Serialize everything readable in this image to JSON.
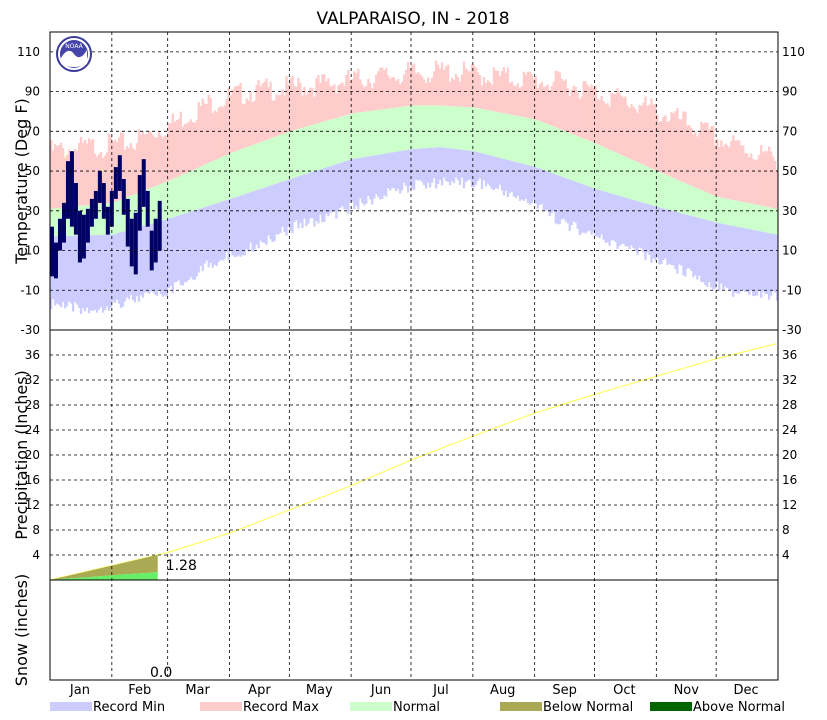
{
  "chart_data": {
    "type": "area",
    "title": "VALPARAISO, IN - 2018",
    "months": [
      "Jan",
      "Feb",
      "Mar",
      "Apr",
      "May",
      "Jun",
      "Jul",
      "Aug",
      "Sep",
      "Oct",
      "Nov",
      "Dec"
    ],
    "colors": {
      "record_min": "#ccccff",
      "record_max": "#ffcccc",
      "normal": "#ccffcc",
      "observed_temp": "#000066",
      "precip_normal_line": "#ffff66",
      "below_normal": "#aaaa55",
      "above_normal": "#006600",
      "observed_precip": "#66ee66",
      "grid": "#000000"
    },
    "panels": [
      {
        "name": "temperature",
        "ylabel": "Temperature (Deg F)",
        "ylim": [
          -30,
          120
        ],
        "yticks": [
          -30,
          -10,
          10,
          30,
          50,
          70,
          90,
          110
        ],
        "normal_high": {
          "x_day": [
            1,
            32,
            60,
            91,
            121,
            152,
            182,
            196,
            213,
            244,
            274,
            305,
            335,
            365
          ],
          "y": [
            31,
            34,
            45,
            59,
            70,
            79,
            83,
            83,
            82,
            76,
            64,
            50,
            37,
            31
          ]
        },
        "normal_low": {
          "x_day": [
            1,
            32,
            60,
            91,
            121,
            152,
            182,
            196,
            213,
            244,
            274,
            305,
            335,
            365
          ],
          "y": [
            17,
            18,
            26,
            36,
            46,
            56,
            61,
            62,
            60,
            52,
            41,
            32,
            24,
            18
          ]
        },
        "record_high": {
          "x_day": [
            1,
            20,
            40,
            60,
            80,
            100,
            120,
            140,
            160,
            180,
            200,
            220,
            240,
            260,
            280,
            300,
            320,
            340,
            365
          ],
          "y": [
            60,
            62,
            64,
            73,
            84,
            90,
            92,
            94,
            97,
            99,
            100,
            98,
            96,
            94,
            88,
            82,
            74,
            64,
            56
          ]
        },
        "record_low": {
          "x_day": [
            1,
            20,
            40,
            60,
            80,
            100,
            120,
            140,
            160,
            180,
            200,
            220,
            240,
            260,
            280,
            300,
            320,
            340,
            365
          ],
          "y": [
            -14,
            -17,
            -12,
            -8,
            6,
            14,
            24,
            30,
            38,
            45,
            48,
            46,
            38,
            26,
            18,
            10,
            2,
            -8,
            -10
          ]
        },
        "observed": {
          "x_day": [
            1,
            3,
            5,
            7,
            9,
            11,
            13,
            15,
            17,
            19,
            21,
            23,
            25,
            27,
            29,
            31,
            33,
            35,
            37,
            39,
            41,
            43,
            45,
            47,
            49,
            51,
            53,
            55
          ],
          "high": [
            22,
            14,
            26,
            34,
            55,
            60,
            44,
            30,
            28,
            31,
            36,
            40,
            50,
            44,
            32,
            40,
            52,
            58,
            46,
            36,
            26,
            29,
            48,
            56,
            40,
            20,
            26,
            35
          ],
          "low": [
            -3,
            -4,
            10,
            14,
            26,
            22,
            18,
            4,
            6,
            14,
            22,
            26,
            34,
            26,
            18,
            22,
            36,
            40,
            28,
            12,
            2,
            -2,
            20,
            32,
            22,
            0,
            4,
            10
          ]
        }
      },
      {
        "name": "precipitation",
        "ylabel": "Precipitation (Inches)",
        "ylim": [
          0,
          40
        ],
        "yticks": [
          4,
          8,
          12,
          16,
          20,
          24,
          28,
          32,
          36
        ],
        "normal_cumulative": {
          "x_day": [
            1,
            32,
            60,
            91,
            121,
            152,
            182,
            213,
            244,
            274,
            305,
            335,
            365
          ],
          "y": [
            0,
            2.3,
            4.4,
            7.5,
            11.2,
            15.1,
            19.2,
            23.0,
            26.7,
            29.7,
            32.6,
            35.4,
            37.8
          ]
        },
        "observed_cumulative": {
          "x_day": [
            1,
            10,
            20,
            30,
            40,
            50,
            55
          ],
          "y": [
            0,
            0.25,
            0.45,
            0.7,
            0.95,
            1.15,
            1.28
          ]
        },
        "annotation": "1.28"
      },
      {
        "name": "snow",
        "ylabel": "Snow (inches)",
        "annotation": "0.0"
      }
    ],
    "legend": [
      "Record Min",
      "Record Max",
      "Normal",
      "Below Normal",
      "Above Normal"
    ],
    "grid": true
  }
}
